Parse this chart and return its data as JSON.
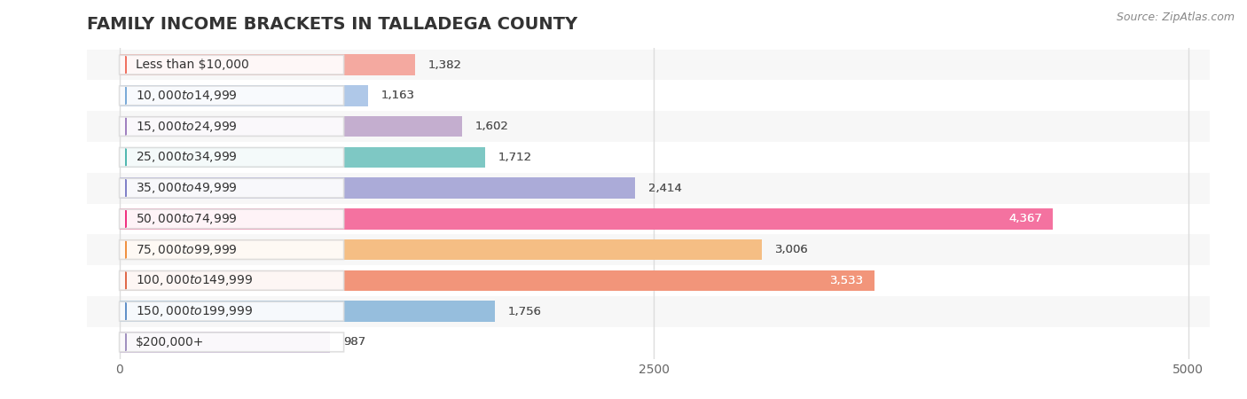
{
  "title": "FAMILY INCOME BRACKETS IN TALLADEGA COUNTY",
  "source": "Source: ZipAtlas.com",
  "categories": [
    "Less than $10,000",
    "$10,000 to $14,999",
    "$15,000 to $24,999",
    "$25,000 to $34,999",
    "$35,000 to $49,999",
    "$50,000 to $74,999",
    "$75,000 to $99,999",
    "$100,000 to $149,999",
    "$150,000 to $199,999",
    "$200,000+"
  ],
  "values": [
    1382,
    1163,
    1602,
    1712,
    2414,
    4367,
    3006,
    3533,
    1756,
    987
  ],
  "bar_colors": [
    "#F4A9A0",
    "#AFC8E8",
    "#C4AECF",
    "#7EC8C4",
    "#ABABD8",
    "#F472A0",
    "#F5BE84",
    "#F2957A",
    "#96BEDD",
    "#C8B4D8"
  ],
  "dot_colors": [
    "#F07060",
    "#7AAAD8",
    "#A080C0",
    "#50B8B0",
    "#8080C8",
    "#F03080",
    "#F09040",
    "#E06848",
    "#6090C8",
    "#A090C0"
  ],
  "bar_height": 0.68,
  "xlim": [
    -150,
    5100
  ],
  "xticks": [
    0,
    2500,
    5000
  ],
  "background_color": "#ffffff",
  "row_bg_even": "#f7f7f7",
  "row_bg_odd": "#ffffff",
  "title_fontsize": 14,
  "label_fontsize": 10,
  "value_fontsize": 9.5,
  "source_fontsize": 9,
  "grid_color": "#dddddd",
  "label_color": "#333333",
  "value_color_inside": "#ffffff",
  "value_color_outside": "#555555",
  "inside_threshold": 3200,
  "pill_bg": "#ffffff",
  "pill_alpha": 0.92
}
